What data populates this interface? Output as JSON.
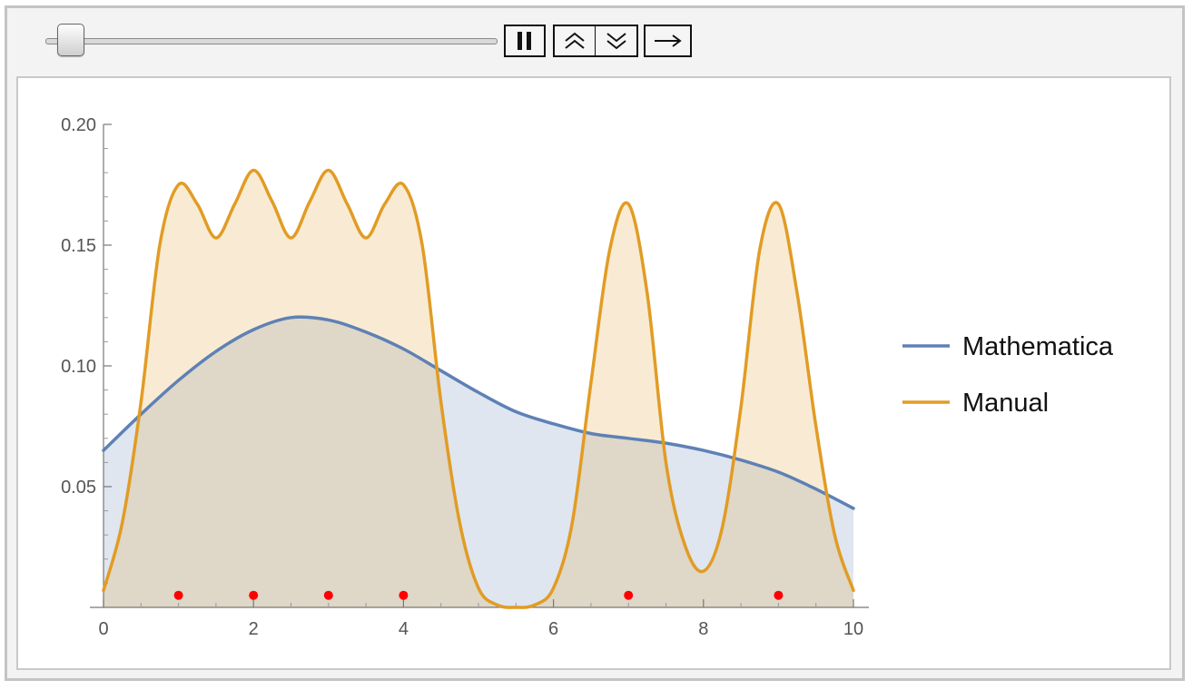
{
  "controls": {
    "slider_icon": "slider-thumb",
    "slider_value": 0.05,
    "pause_icon": "pause-icon",
    "step_up_icon": "double-chevron-up-icon",
    "step_down_icon": "double-chevron-down-icon",
    "direction_icon": "right-arrow-icon"
  },
  "chart_data": {
    "type": "area",
    "xlim": [
      0,
      10
    ],
    "ylim": [
      0,
      0.2
    ],
    "x_ticks": [
      0,
      2,
      4,
      6,
      8,
      10
    ],
    "x_tick_labels": [
      "0",
      "2",
      "4",
      "6",
      "8",
      "10"
    ],
    "y_ticks": [
      0.05,
      0.1,
      0.15,
      0.2
    ],
    "y_tick_labels": [
      "0.05",
      "0.10",
      "0.15",
      "0.20"
    ],
    "title": "",
    "xlabel": "",
    "ylabel": "",
    "grid": false,
    "legend_position": "right",
    "series": [
      {
        "name": "Mathematica",
        "color": "#5e81b5",
        "fill": "#dde4ef",
        "x": [
          0,
          0.5,
          1,
          1.5,
          2,
          2.5,
          3,
          3.5,
          4,
          4.5,
          5,
          5.5,
          6,
          6.5,
          7,
          7.5,
          8,
          8.5,
          9,
          9.5,
          10
        ],
        "values": [
          0.065,
          0.08,
          0.094,
          0.106,
          0.115,
          0.12,
          0.119,
          0.114,
          0.107,
          0.098,
          0.089,
          0.081,
          0.076,
          0.072,
          0.07,
          0.068,
          0.065,
          0.061,
          0.056,
          0.049,
          0.041
        ]
      },
      {
        "name": "Manual",
        "color": "#e19c24",
        "fill": "#f8ebd6",
        "x": [
          0,
          0.25,
          0.5,
          0.75,
          1,
          1.25,
          1.5,
          1.75,
          2,
          2.25,
          2.5,
          2.75,
          3,
          3.25,
          3.5,
          3.75,
          4,
          4.25,
          4.5,
          4.75,
          5,
          5.25,
          5.5,
          5.75,
          6,
          6.25,
          6.5,
          6.75,
          7,
          7.25,
          7.5,
          7.75,
          8,
          8.25,
          8.5,
          8.75,
          9,
          9.25,
          9.5,
          9.75,
          10
        ],
        "values": [
          0.007,
          0.035,
          0.085,
          0.15,
          0.175,
          0.167,
          0.153,
          0.167,
          0.181,
          0.168,
          0.153,
          0.168,
          0.181,
          0.167,
          0.153,
          0.167,
          0.175,
          0.15,
          0.085,
          0.035,
          0.008,
          0.001,
          0.0,
          0.001,
          0.008,
          0.035,
          0.093,
          0.148,
          0.167,
          0.13,
          0.06,
          0.026,
          0.015,
          0.033,
          0.083,
          0.148,
          0.167,
          0.13,
          0.075,
          0.03,
          0.007
        ]
      }
    ],
    "points": {
      "color": "#ff0000",
      "x": [
        1,
        2,
        3,
        4,
        7,
        9
      ],
      "y": [
        0.005,
        0.005,
        0.005,
        0.005,
        0.005,
        0.005
      ]
    }
  }
}
